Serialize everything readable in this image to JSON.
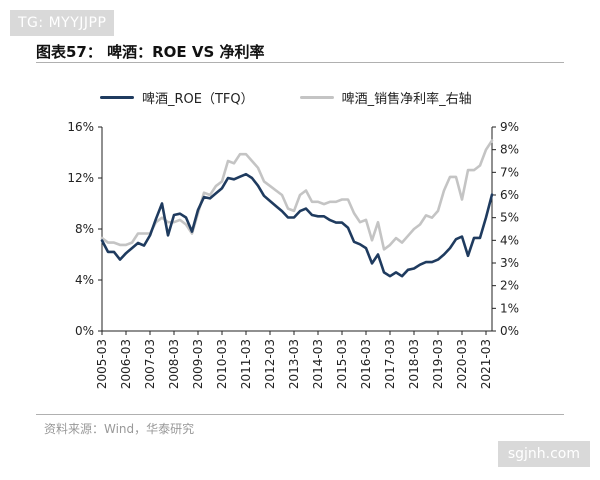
{
  "watermark_top": "TG: MYYJJPP",
  "watermark_bottom": "sgjnh.com",
  "title": "图表57：  啤酒：ROE VS  净利率",
  "source": "资料来源：Wind，华泰研究",
  "chart_data": {
    "type": "line",
    "title": "图表57：  啤酒：ROE VS  净利率",
    "x": [
      "2005-03",
      "2006-03",
      "2007-03",
      "2008-03",
      "2009-03",
      "2010-03",
      "2011-03",
      "2012-03",
      "2013-03",
      "2014-03",
      "2015-03",
      "2016-03",
      "2017-03",
      "2018-03",
      "2019-03",
      "2020-03",
      "2021-03"
    ],
    "y_left": {
      "ticks": [
        "0%",
        "4%",
        "8%",
        "12%",
        "16%"
      ],
      "lim": [
        0,
        16
      ]
    },
    "y_right": {
      "ticks": [
        "0%",
        "1%",
        "2%",
        "3%",
        "4%",
        "5%",
        "6%",
        "7%",
        "8%",
        "9%"
      ],
      "lim": [
        0,
        9
      ]
    },
    "series": [
      {
        "name": "啤酒_ROE（TFQ）",
        "axis": "left",
        "color": "#1f3b5f",
        "x": [
          2005.0,
          2005.25,
          2005.5,
          2005.75,
          2006.0,
          2006.25,
          2006.5,
          2006.75,
          2007.0,
          2007.25,
          2007.5,
          2007.75,
          2008.0,
          2008.25,
          2008.5,
          2008.75,
          2009.0,
          2009.25,
          2009.5,
          2009.75,
          2010.0,
          2010.25,
          2010.5,
          2010.75,
          2011.0,
          2011.25,
          2011.5,
          2011.75,
          2012.0,
          2012.25,
          2012.5,
          2012.75,
          2013.0,
          2013.25,
          2013.5,
          2013.75,
          2014.0,
          2014.25,
          2014.5,
          2014.75,
          2015.0,
          2015.25,
          2015.5,
          2015.75,
          2016.0,
          2016.25,
          2016.5,
          2016.75,
          2017.0,
          2017.25,
          2017.5,
          2017.75,
          2018.0,
          2018.25,
          2018.5,
          2018.75,
          2019.0,
          2019.25,
          2019.5,
          2019.75,
          2020.0,
          2020.25,
          2020.5,
          2020.75,
          2021.0,
          2021.25
        ],
        "values": [
          7.1,
          6.2,
          6.2,
          5.6,
          6.1,
          6.5,
          6.9,
          6.7,
          7.5,
          8.8,
          10.0,
          7.5,
          9.1,
          9.2,
          8.9,
          7.8,
          9.5,
          10.5,
          10.4,
          10.8,
          11.2,
          12.0,
          11.9,
          12.1,
          12.3,
          12.0,
          11.4,
          10.6,
          10.2,
          9.8,
          9.4,
          8.9,
          8.9,
          9.4,
          9.6,
          9.1,
          9.0,
          9.0,
          8.7,
          8.5,
          8.5,
          8.1,
          7.0,
          6.8,
          6.5,
          5.3,
          6.0,
          4.6,
          4.3,
          4.6,
          4.3,
          4.8,
          4.9,
          5.2,
          5.4,
          5.4,
          5.6,
          6.0,
          6.5,
          7.2,
          7.4,
          5.9,
          7.3,
          7.3,
          8.9,
          10.7
        ]
      },
      {
        "name": "啤酒_销售净利率_右轴",
        "axis": "right",
        "color": "#c4c4c4",
        "x": [
          2005.0,
          2005.25,
          2005.5,
          2005.75,
          2006.0,
          2006.25,
          2006.5,
          2006.75,
          2007.0,
          2007.25,
          2007.5,
          2007.75,
          2008.0,
          2008.25,
          2008.5,
          2008.75,
          2009.0,
          2009.25,
          2009.5,
          2009.75,
          2010.0,
          2010.25,
          2010.5,
          2010.75,
          2011.0,
          2011.25,
          2011.5,
          2011.75,
          2012.0,
          2012.25,
          2012.5,
          2012.75,
          2013.0,
          2013.25,
          2013.5,
          2013.75,
          2014.0,
          2014.25,
          2014.5,
          2014.75,
          2015.0,
          2015.25,
          2015.5,
          2015.75,
          2016.0,
          2016.25,
          2016.5,
          2016.75,
          2017.0,
          2017.25,
          2017.5,
          2017.75,
          2018.0,
          2018.25,
          2018.5,
          2018.75,
          2019.0,
          2019.25,
          2019.5,
          2019.75,
          2020.0,
          2020.25,
          2020.5,
          2020.75,
          2021.0,
          2021.25
        ],
        "values": [
          4.1,
          3.9,
          3.9,
          3.8,
          3.8,
          3.9,
          4.3,
          4.3,
          4.3,
          4.8,
          5.0,
          4.8,
          4.8,
          4.9,
          4.7,
          4.3,
          5.2,
          6.1,
          6.0,
          6.4,
          6.6,
          7.5,
          7.4,
          7.8,
          7.8,
          7.5,
          7.2,
          6.6,
          6.4,
          6.2,
          6.0,
          5.4,
          5.3,
          6.0,
          6.2,
          5.7,
          5.7,
          5.6,
          5.7,
          5.7,
          5.8,
          5.8,
          5.2,
          4.8,
          4.9,
          4.0,
          4.8,
          3.6,
          3.8,
          4.1,
          3.9,
          4.2,
          4.5,
          4.7,
          5.1,
          5.0,
          5.3,
          6.2,
          6.8,
          6.8,
          5.8,
          7.1,
          7.1,
          7.3,
          8.0,
          8.4
        ]
      }
    ],
    "legend": "top"
  }
}
